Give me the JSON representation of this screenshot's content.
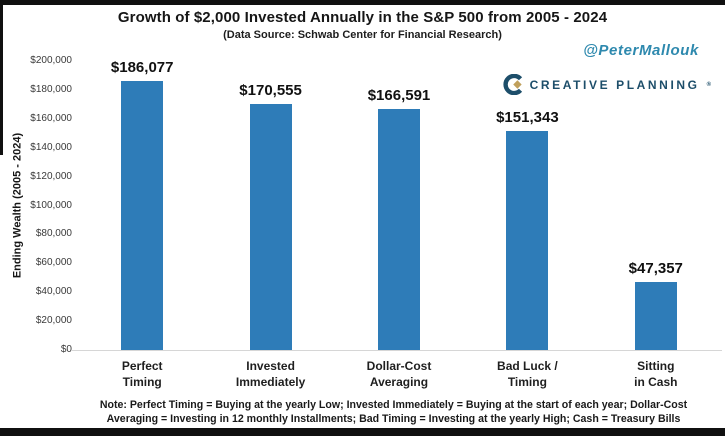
{
  "chart": {
    "title": "Growth of $2,000 Invested Annually in the S&P 500 from 2005 - 2024",
    "subtitle": "(Data Source: Schwab Center for Financial Research)",
    "ylabel": "Ending Wealth (2005 - 2024)",
    "note": "Note: Perfect Timing = Buying at the yearly Low; Invested Immediately = Buying at the start of each year; Dollar-Cost\nAveraging = Investing in 12 monthly Installments; Bad Timing = Investing at the yearly High; Cash = Treasury Bills"
  },
  "branding": {
    "handle": "@PeterMallouk",
    "logo_text": "CREATIVE PLANNING",
    "logo_tm": "®",
    "handle_color": "#2e89ae",
    "navy_color": "#1d4e6a",
    "gold_color": "#c0a05c"
  },
  "chart_data": {
    "type": "bar",
    "title": "Growth of $2,000 Invested Annually in the S&P 500 from 2005 - 2024",
    "subtitle": "(Data Source: Schwab Center for Financial Research)",
    "categories": [
      "Perfect\nTiming",
      "Invested\nImmediately",
      "Dollar-Cost\nAveraging",
      "Bad Luck /\nTiming",
      "Sitting\nin Cash"
    ],
    "values": [
      186077,
      170555,
      166591,
      151343,
      47357
    ],
    "value_labels": [
      "$186,077",
      "$170,555",
      "$166,591",
      "$151,343",
      "$47,357"
    ],
    "xlabel": "",
    "ylabel": "Ending Wealth (2005 - 2024)",
    "ylim": [
      0,
      200000
    ],
    "yticks": [
      0,
      20000,
      40000,
      60000,
      80000,
      100000,
      120000,
      140000,
      160000,
      180000,
      200000
    ],
    "ytick_labels": [
      "$0",
      "$20,000",
      "$40,000",
      "$60,000",
      "$80,000",
      "$100,000",
      "$120,000",
      "$140,000",
      "$160,000",
      "$180,000",
      "$200,000"
    ],
    "grid": false,
    "legend": null,
    "bar_color": "#2e7cb8",
    "note": "Note: Perfect Timing = Buying at the yearly Low; Invested Immediately = Buying at the start of each year; Dollar-Cost Averaging = Investing in 12 monthly Installments; Bad Timing = Investing at the yearly High; Cash = Treasury Bills"
  }
}
